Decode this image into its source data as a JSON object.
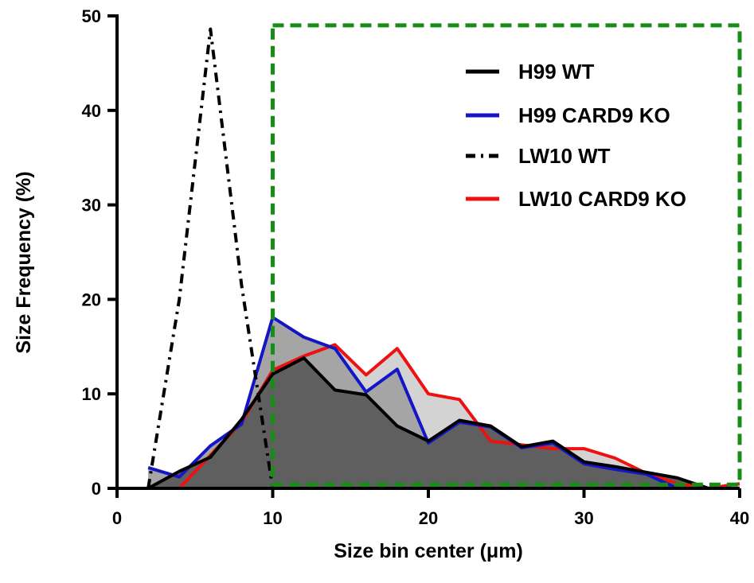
{
  "chart_data": {
    "type": "area",
    "title": "",
    "xlabel": "Size bin center (μm)",
    "ylabel": "Size Frequency (%)",
    "xlim": [
      0,
      40
    ],
    "ylim": [
      0,
      50
    ],
    "x_ticks": [
      0,
      10,
      20,
      30,
      40
    ],
    "y_ticks": [
      0,
      10,
      20,
      30,
      40,
      50
    ],
    "grid": false,
    "legend_position": "top-right",
    "x": [
      2,
      4,
      6,
      8,
      10,
      12,
      14,
      16,
      18,
      20,
      22,
      24,
      26,
      28,
      30,
      32,
      34,
      36,
      38,
      40
    ],
    "series": [
      {
        "name": "H99 WT",
        "color": "#000000",
        "fill": "#5f5f5f",
        "line_style": "solid",
        "values": [
          0,
          1.8,
          3.3,
          7.3,
          12.1,
          13.8,
          10.4,
          9.9,
          6.6,
          5.0,
          7.2,
          6.6,
          4.4,
          5.0,
          2.8,
          2.3,
          1.7,
          1.1,
          0,
          0
        ]
      },
      {
        "name": "H99 CARD9 KO",
        "color": "#1515c8",
        "fill": "#a5a5a5",
        "line_style": "solid",
        "values": [
          2.2,
          1.2,
          4.5,
          6.8,
          18.1,
          16.0,
          14.8,
          10.2,
          12.6,
          4.8,
          7.0,
          6.5,
          4.3,
          4.8,
          2.6,
          2.0,
          1.5,
          0,
          0,
          0
        ]
      },
      {
        "name": "LW10 WT",
        "color": "#000000",
        "fill": "none",
        "line_style": "dash-dot",
        "values": [
          0,
          20,
          48.6,
          21.5,
          0,
          0,
          0,
          0,
          0,
          0,
          0,
          0,
          0,
          0,
          0,
          0,
          0,
          0,
          0,
          0
        ]
      },
      {
        "name": "LW10 CARD9 KO",
        "color": "#ee1111",
        "fill": "#d3d3d3",
        "line_style": "solid",
        "values": [
          0,
          0,
          3.5,
          7.0,
          12.5,
          14.0,
          15.2,
          12.0,
          14.8,
          10.0,
          9.4,
          5.0,
          4.6,
          4.2,
          4.2,
          3.2,
          1.6,
          0.5,
          0,
          0.5
        ]
      }
    ],
    "annotations": [
      {
        "type": "dashed-rectangle",
        "color": "#178c17",
        "x_range": [
          10,
          40
        ],
        "y_range": [
          0.4,
          49
        ]
      }
    ]
  }
}
